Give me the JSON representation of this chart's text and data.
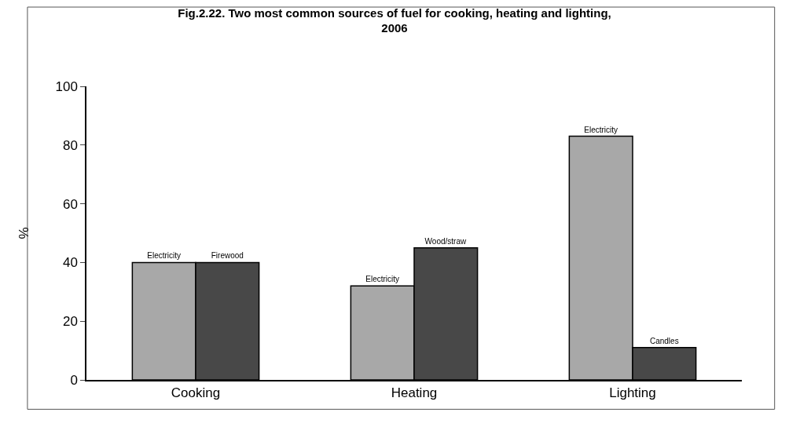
{
  "chart_data": {
    "type": "bar",
    "title": "Fig.2.22. Two most common sources of fuel for cooking, heating and lighting,\n2006",
    "ylabel": "%",
    "categories": [
      "Cooking",
      "Heating",
      "Lighting"
    ],
    "series": [
      {
        "color": "#a8a8a8",
        "values": [
          40,
          32,
          83
        ],
        "value_labels": [
          "Electricity",
          "Electricity",
          "Electricity"
        ]
      },
      {
        "color": "#484848",
        "values": [
          40,
          45,
          11
        ],
        "value_labels": [
          "Firewood",
          "Wood/straw",
          "Candles"
        ]
      }
    ],
    "ylim": [
      0,
      100
    ],
    "yticks": [
      0,
      20,
      40,
      60,
      80,
      100
    ],
    "grid": false
  }
}
